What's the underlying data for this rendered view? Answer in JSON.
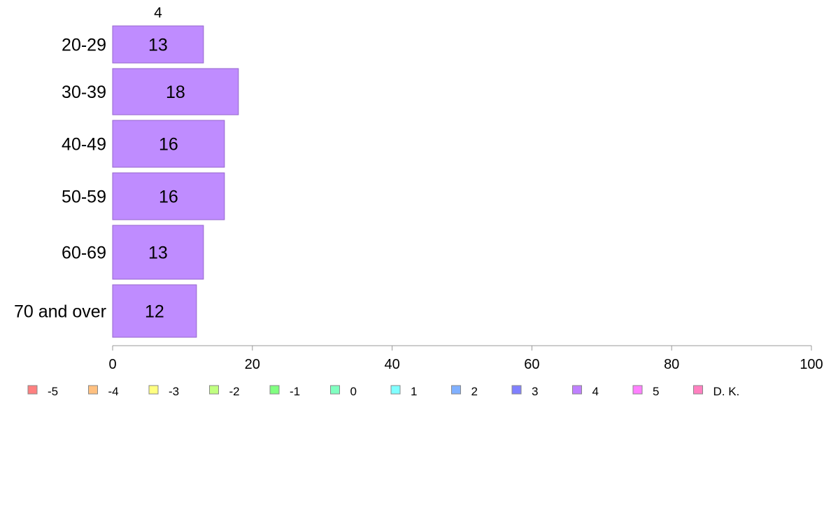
{
  "chart_data": {
    "type": "bar",
    "orientation": "horizontal",
    "series_label": "4",
    "categories": [
      "20-29",
      "30-39",
      "40-49",
      "50-59",
      "60-69",
      "70 and over"
    ],
    "values": [
      13,
      18,
      16,
      16,
      13,
      12
    ],
    "xlim": [
      0,
      100
    ],
    "xticks": [
      0,
      20,
      40,
      60,
      80,
      100
    ],
    "bar_color": "#bf8cff",
    "bar_stroke": "#9466cc",
    "axis_color": "#999999",
    "legend_position": "bottom",
    "legend": [
      {
        "label": "-5",
        "color": "#ff8080"
      },
      {
        "label": "-4",
        "color": "#ffc080"
      },
      {
        "label": "-3",
        "color": "#ffff80"
      },
      {
        "label": "-2",
        "color": "#c0ff80"
      },
      {
        "label": "-1",
        "color": "#80ff80"
      },
      {
        "label": "0",
        "color": "#80ffc0"
      },
      {
        "label": "1",
        "color": "#80ffff"
      },
      {
        "label": "2",
        "color": "#80b0ff"
      },
      {
        "label": "3",
        "color": "#8080ff"
      },
      {
        "label": "4",
        "color": "#bf80ff"
      },
      {
        "label": "5",
        "color": "#ff80ff"
      },
      {
        "label": "D. K.",
        "color": "#ff80c0"
      }
    ]
  }
}
